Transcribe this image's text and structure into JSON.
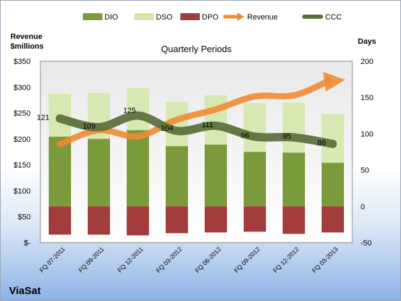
{
  "company": "ViaSat",
  "chart_data": {
    "type": "bar",
    "title": "Quarterly Periods",
    "ylabel_left": "Revenue\n$millions",
    "ylabel_right": "Days",
    "ylim_left": [
      0,
      350
    ],
    "ylim_right": [
      -50,
      200
    ],
    "yticks_left": [
      "$-",
      "$50",
      "$100",
      "$150",
      "$200",
      "$250",
      "$300",
      "$350"
    ],
    "yticks_right": [
      "-50",
      "0",
      "50",
      "100",
      "150",
      "200"
    ],
    "legend_position": "top",
    "legend": [
      "DIO",
      "DSO",
      "DPO",
      "Revenue",
      "CCC"
    ],
    "colors": {
      "DIO": "#7a9a3c",
      "DSO": "#d4e6a8",
      "DPO": "#a33c3c",
      "Revenue": "#ef8b33",
      "CCC": "#5a6e3a"
    },
    "categories": [
      "FQ 07-2011",
      "FQ 09-2011",
      "FQ 12-2011",
      "FQ 03-2012",
      "FQ 06-2012",
      "FQ 09-2012",
      "FQ 12-2012",
      "FQ 03-2013"
    ],
    "series": [
      {
        "name": "DIO",
        "axis": "right",
        "values": [
          96,
          93,
          105,
          83,
          85,
          75,
          74,
          60
        ]
      },
      {
        "name": "DSO",
        "axis": "right",
        "values": [
          59,
          63,
          58,
          61,
          68,
          67,
          69,
          67
        ]
      },
      {
        "name": "DPO",
        "axis": "right",
        "values": [
          -39,
          -39,
          -40,
          -37,
          -36,
          -35,
          -38,
          -36
        ]
      },
      {
        "name": "Revenue",
        "axis": "left",
        "values": [
          190,
          217,
          205,
          237,
          257,
          282,
          284,
          313
        ]
      },
      {
        "name": "CCC",
        "axis": "right",
        "values": [
          121,
          109,
          125,
          104,
          111,
          96,
          95,
          86
        ]
      }
    ],
    "data_labels": {
      "series": "CCC",
      "values": [
        "121",
        "109",
        "125",
        "104",
        "111",
        "96",
        "95",
        "86"
      ]
    }
  }
}
